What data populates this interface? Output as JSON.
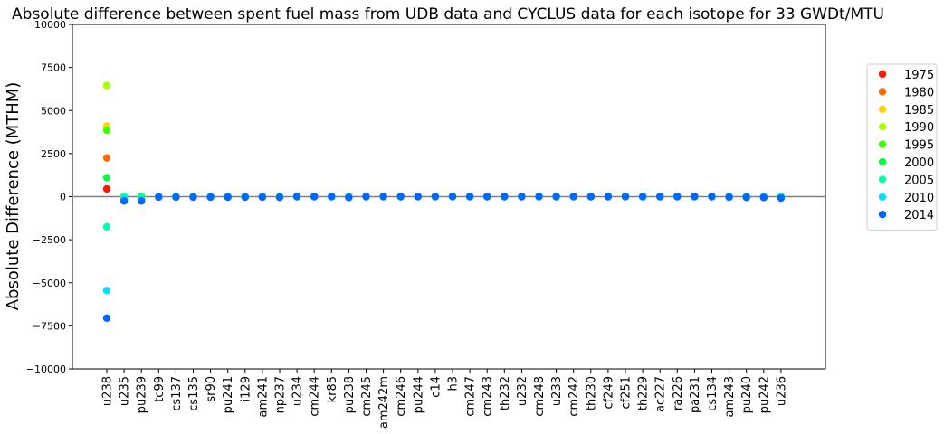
{
  "chart_data": {
    "type": "scatter",
    "title": "Absolute difference between spent fuel mass from UDB data and CYCLUS data for each isotope for 33 GWDt/MTU",
    "xlabel": "",
    "ylabel": "Absolute Difference (MTHM)",
    "ylim": [
      -10000,
      10000
    ],
    "yticks": [
      -10000,
      -7500,
      -5000,
      -2500,
      0,
      2500,
      5000,
      7500,
      10000
    ],
    "ytick_labels": [
      "−10000",
      "−7500",
      "−5000",
      "−2500",
      "0",
      "2500",
      "5000",
      "7500",
      "10000"
    ],
    "grid": false,
    "zero_line": true,
    "legend_position": "right",
    "categories": [
      "u238",
      "u235",
      "pu239",
      "tc99",
      "cs137",
      "cs135",
      "sr90",
      "pu241",
      "i129",
      "am241",
      "np237",
      "u234",
      "cm244",
      "kr85",
      "pu238",
      "cm245",
      "am242m",
      "cm246",
      "pu244",
      "c14",
      "h3",
      "cm247",
      "cm243",
      "th232",
      "u232",
      "cm248",
      "u233",
      "cm242",
      "th230",
      "cf249",
      "cf251",
      "th229",
      "ac227",
      "ra226",
      "pa231",
      "cs134",
      "am243",
      "pu240",
      "pu242",
      "u236"
    ],
    "series": [
      {
        "name": "1975",
        "color": "#ff1a00",
        "values": [
          450,
          0,
          0,
          0,
          0,
          0,
          0,
          0,
          0,
          0,
          0,
          0,
          0,
          0,
          0,
          0,
          0,
          0,
          0,
          0,
          0,
          0,
          0,
          0,
          0,
          0,
          0,
          0,
          0,
          0,
          0,
          0,
          0,
          0,
          0,
          0,
          0,
          0,
          0,
          0
        ]
      },
      {
        "name": "1980",
        "color": "#ff6a00",
        "values": [
          2250,
          0,
          0,
          0,
          0,
          0,
          0,
          0,
          0,
          0,
          0,
          0,
          0,
          0,
          0,
          0,
          0,
          0,
          0,
          0,
          0,
          0,
          0,
          0,
          0,
          0,
          0,
          0,
          0,
          0,
          0,
          0,
          0,
          0,
          0,
          0,
          0,
          0,
          0,
          0
        ]
      },
      {
        "name": "1985",
        "color": "#ffd500",
        "values": [
          4100,
          0,
          0,
          0,
          0,
          0,
          0,
          0,
          0,
          0,
          0,
          0,
          0,
          0,
          0,
          0,
          0,
          0,
          0,
          0,
          0,
          0,
          0,
          0,
          0,
          0,
          0,
          0,
          0,
          0,
          0,
          0,
          0,
          0,
          0,
          0,
          0,
          0,
          0,
          0
        ]
      },
      {
        "name": "1990",
        "color": "#aaff00",
        "values": [
          6450,
          20,
          20,
          0,
          0,
          0,
          0,
          0,
          0,
          0,
          0,
          0,
          0,
          0,
          0,
          0,
          0,
          0,
          0,
          0,
          0,
          0,
          0,
          0,
          0,
          0,
          0,
          0,
          0,
          0,
          0,
          0,
          0,
          0,
          0,
          0,
          0,
          0,
          0,
          0
        ]
      },
      {
        "name": "1995",
        "color": "#3fff00",
        "values": [
          3850,
          10,
          10,
          0,
          0,
          0,
          0,
          0,
          0,
          0,
          0,
          0,
          0,
          0,
          0,
          0,
          0,
          0,
          0,
          0,
          0,
          0,
          0,
          0,
          0,
          0,
          0,
          0,
          0,
          0,
          0,
          0,
          0,
          0,
          0,
          0,
          0,
          0,
          0,
          0
        ]
      },
      {
        "name": "2000",
        "color": "#00ff44",
        "values": [
          1100,
          5,
          5,
          0,
          0,
          0,
          0,
          0,
          0,
          0,
          0,
          0,
          0,
          0,
          0,
          0,
          0,
          0,
          0,
          0,
          0,
          0,
          0,
          0,
          0,
          0,
          0,
          0,
          0,
          0,
          0,
          0,
          0,
          0,
          0,
          0,
          0,
          0,
          0,
          0
        ]
      },
      {
        "name": "2005",
        "color": "#00ffa8",
        "values": [
          -1750,
          -20,
          -30,
          0,
          0,
          0,
          0,
          0,
          0,
          0,
          0,
          0,
          0,
          0,
          0,
          0,
          0,
          0,
          0,
          0,
          0,
          0,
          0,
          0,
          0,
          0,
          0,
          0,
          0,
          0,
          0,
          0,
          0,
          0,
          0,
          0,
          0,
          0,
          0,
          10
        ]
      },
      {
        "name": "2010",
        "color": "#00ddff",
        "values": [
          -5450,
          -150,
          -180,
          -20,
          -20,
          -20,
          -20,
          -20,
          -20,
          -20,
          -20,
          0,
          0,
          0,
          -20,
          0,
          0,
          0,
          0,
          0,
          0,
          0,
          0,
          0,
          0,
          0,
          0,
          0,
          0,
          0,
          0,
          0,
          0,
          0,
          0,
          0,
          -20,
          -20,
          -20,
          -40
        ]
      },
      {
        "name": "2014",
        "color": "#0066ff",
        "values": [
          -7050,
          -250,
          -250,
          -20,
          -30,
          -30,
          -30,
          -30,
          -30,
          -30,
          -40,
          10,
          10,
          10,
          -50,
          10,
          10,
          10,
          10,
          10,
          10,
          10,
          10,
          10,
          10,
          10,
          10,
          10,
          10,
          10,
          10,
          10,
          10,
          10,
          10,
          10,
          -30,
          -40,
          -50,
          -80
        ]
      }
    ]
  }
}
